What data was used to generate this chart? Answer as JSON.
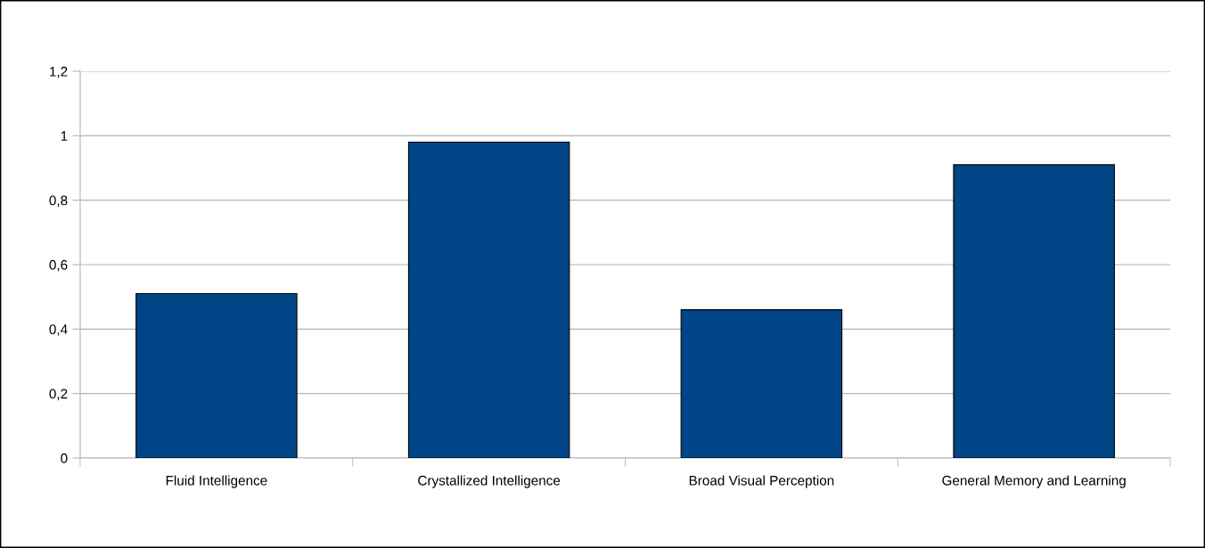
{
  "chart_data": {
    "type": "bar",
    "categories": [
      "Fluid Intelligence",
      "Crystallized Intelligence",
      "Broad Visual Perception",
      "General Memory and Learning"
    ],
    "values": [
      0.51,
      0.98,
      0.46,
      0.91
    ],
    "color": "#004586",
    "ylim": [
      0,
      1.2
    ],
    "yticks": [
      {
        "value": 0,
        "label": "0"
      },
      {
        "value": 0.2,
        "label": "0,2"
      },
      {
        "value": 0.4,
        "label": "0,4"
      },
      {
        "value": 0.6,
        "label": "0,6"
      },
      {
        "value": 0.8,
        "label": "0,8"
      },
      {
        "value": 1,
        "label": "1"
      },
      {
        "value": 1.2,
        "label": "1,2"
      }
    ],
    "grid": "y",
    "legend": false
  }
}
